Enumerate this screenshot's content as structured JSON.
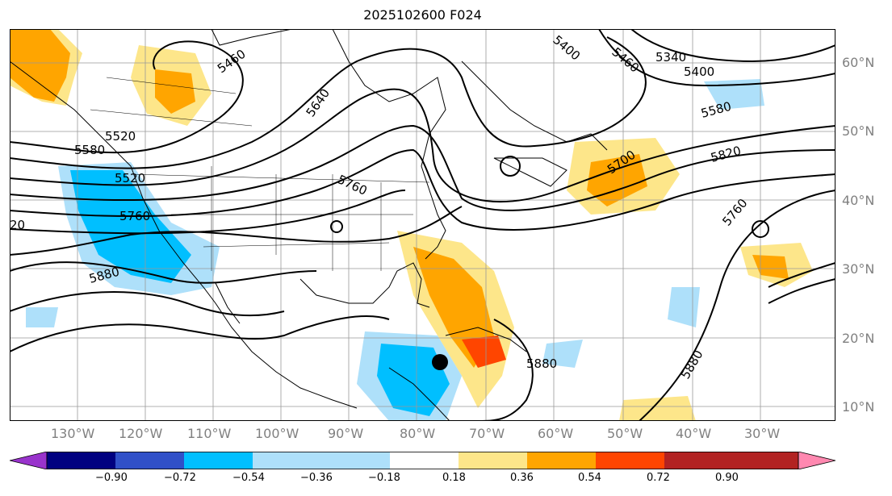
{
  "title": "2025102600 F024",
  "lon_labels": [
    "130°W",
    "120°W",
    "110°W",
    "100°W",
    "90°W",
    "80°W",
    "70°W",
    "60°W",
    "50°W",
    "40°W",
    "30°W"
  ],
  "lat_labels": [
    "60°N",
    "50°N",
    "40°N",
    "30°N",
    "20°N",
    "10°N"
  ],
  "contour_labels": [
    "5460",
    "5520",
    "5640",
    "5460",
    "5340",
    "5400",
    "5580",
    "5580",
    "5700",
    "5820",
    "5760",
    "5520",
    "5760",
    "5880",
    "5760",
    "5880",
    "5880",
    "20",
    "5400"
  ],
  "colorbar": {
    "ticks": [
      "−0.90",
      "−0.72",
      "−0.54",
      "−0.36",
      "−0.18",
      "0.18",
      "0.36",
      "0.54",
      "0.72",
      "0.90"
    ],
    "colors": [
      "#9933cc",
      "#000080",
      "#3050c8",
      "#00bfff",
      "#aee0fa",
      "#ffffff",
      "#fde68a",
      "#ffa500",
      "#ff4500",
      "#b22222",
      "#ff88b0"
    ]
  },
  "marker": "storm-center-dot"
}
